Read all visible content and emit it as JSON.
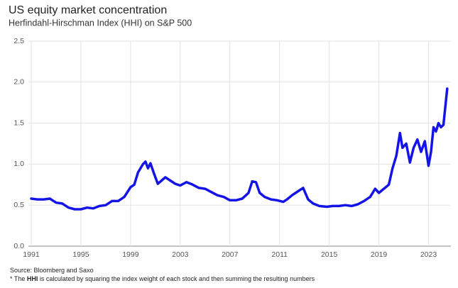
{
  "chart_data": {
    "type": "line",
    "title": "US equity market concentration",
    "subtitle": "Herfindahl-Hirschman Index (HHI) on S&P 500",
    "source": "Source: Bloomberg and Saxo",
    "footnote": {
      "prefix": "* The ",
      "bold": "HHI",
      "suffix": " is calculated by squaring the index weight of each stock and then summing the resulting numbers"
    },
    "grid": true,
    "xlim": [
      1991,
      2024.8
    ],
    "xticks": [
      1991,
      1995,
      1999,
      2003,
      2007,
      2011,
      2015,
      2019,
      2023
    ],
    "ylim": [
      0,
      2.5
    ],
    "yticks": [
      {
        "value": 0,
        "label": "0.0"
      },
      0.5,
      {
        "value": 1,
        "label": "1.0"
      },
      1.5,
      {
        "value": 2,
        "label": "2.0"
      },
      2.5
    ],
    "x": [
      1991,
      1991.5,
      1992,
      1992.5,
      1993,
      1993.5,
      1994,
      1994.5,
      1995,
      1995.5,
      1996,
      1996.5,
      1997,
      1997.5,
      1998,
      1998.5,
      1999,
      1999.3,
      1999.6,
      2000,
      2000.2,
      2000.4,
      2000.6,
      2000.9,
      2001.2,
      2001.5,
      2001.8,
      2002.2,
      2002.6,
      2003,
      2003.5,
      2004,
      2004.5,
      2005,
      2005.5,
      2006,
      2006.5,
      2007,
      2007.5,
      2008,
      2008.5,
      2008.8,
      2009.1,
      2009.4,
      2009.8,
      2010.3,
      2010.8,
      2011.3,
      2011.6,
      2012,
      2012.5,
      2012.9,
      2013.3,
      2013.7,
      2014.2,
      2014.8,
      2015.3,
      2015.8,
      2016.3,
      2016.8,
      2017.3,
      2017.8,
      2018.3,
      2018.7,
      2019,
      2019.4,
      2019.8,
      2020.1,
      2020.4,
      2020.7,
      2020.9,
      2021.2,
      2021.5,
      2021.8,
      2022.1,
      2022.4,
      2022.7,
      2023,
      2023.2,
      2023.4,
      2023.6,
      2023.8,
      2024,
      2024.2,
      2024.5
    ],
    "series": [
      {
        "name": "HHI",
        "color": "#1414e6",
        "values": [
          0.58,
          0.57,
          0.57,
          0.58,
          0.53,
          0.52,
          0.47,
          0.45,
          0.45,
          0.47,
          0.46,
          0.49,
          0.5,
          0.55,
          0.55,
          0.6,
          0.72,
          0.75,
          0.9,
          1.0,
          1.03,
          0.95,
          1.01,
          0.88,
          0.76,
          0.8,
          0.84,
          0.8,
          0.76,
          0.74,
          0.78,
          0.75,
          0.71,
          0.7,
          0.66,
          0.62,
          0.6,
          0.56,
          0.56,
          0.58,
          0.65,
          0.79,
          0.78,
          0.65,
          0.6,
          0.57,
          0.56,
          0.54,
          0.57,
          0.62,
          0.67,
          0.71,
          0.57,
          0.52,
          0.49,
          0.48,
          0.49,
          0.49,
          0.5,
          0.49,
          0.51,
          0.55,
          0.6,
          0.7,
          0.65,
          0.7,
          0.75,
          0.95,
          1.1,
          1.38,
          1.2,
          1.25,
          1.02,
          1.2,
          1.3,
          1.15,
          1.28,
          0.98,
          1.15,
          1.45,
          1.4,
          1.5,
          1.45,
          1.48,
          1.92
        ]
      }
    ]
  }
}
